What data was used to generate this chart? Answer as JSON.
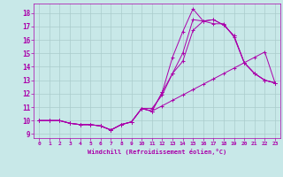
{
  "xlabel": "Windchill (Refroidissement éolien,°C)",
  "background_color": "#c8e8e8",
  "line_color": "#aa00aa",
  "grid_color": "#aacccc",
  "xlim": [
    -0.5,
    23.5
  ],
  "ylim": [
    8.7,
    18.7
  ],
  "yticks": [
    9,
    10,
    11,
    12,
    13,
    14,
    15,
    16,
    17,
    18
  ],
  "xticks": [
    0,
    1,
    2,
    3,
    4,
    5,
    6,
    7,
    8,
    9,
    10,
    11,
    12,
    13,
    14,
    15,
    16,
    17,
    18,
    19,
    20,
    21,
    22,
    23
  ],
  "series": [
    [
      10.0,
      10.0,
      10.0,
      9.8,
      9.7,
      9.7,
      9.6,
      9.3,
      9.7,
      9.9,
      10.9,
      10.9,
      11.9,
      13.5,
      14.4,
      16.7,
      17.4,
      17.2,
      17.2,
      16.2,
      14.3,
      13.5,
      13.0,
      12.8
    ],
    [
      10.0,
      10.0,
      10.0,
      9.8,
      9.7,
      9.7,
      9.6,
      9.3,
      9.7,
      9.9,
      10.9,
      10.7,
      12.1,
      14.7,
      16.6,
      18.3,
      17.4,
      17.5,
      17.1,
      16.3,
      14.3,
      13.5,
      13.0,
      12.8
    ],
    [
      10.0,
      10.0,
      10.0,
      9.8,
      9.7,
      9.7,
      9.6,
      9.3,
      9.7,
      9.9,
      10.9,
      10.7,
      12.1,
      13.5,
      15.0,
      17.5,
      17.4,
      17.5,
      17.1,
      16.3,
      14.3,
      13.5,
      13.0,
      12.8
    ],
    [
      10.0,
      10.0,
      10.0,
      9.8,
      9.7,
      9.7,
      9.6,
      9.3,
      9.7,
      9.9,
      10.9,
      10.7,
      11.1,
      11.5,
      11.9,
      12.3,
      12.7,
      13.1,
      13.5,
      13.9,
      14.3,
      14.7,
      15.1,
      12.8
    ]
  ]
}
